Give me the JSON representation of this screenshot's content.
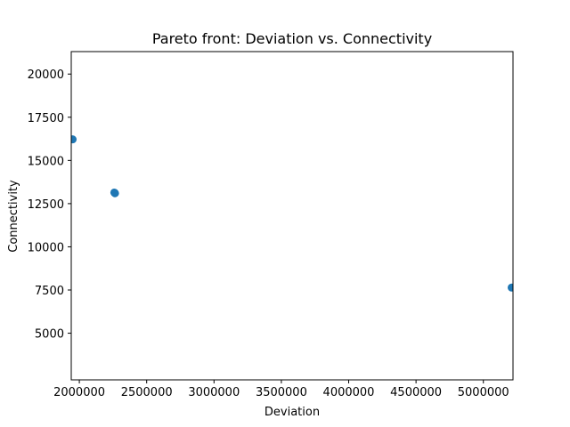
{
  "chart_data": {
    "type": "scatter",
    "title": "Pareto front: Deviation vs. Connectivity",
    "xlabel": "Deviation",
    "ylabel": "Connectivity",
    "xlim": [
      1940000,
      5220000
    ],
    "ylim": [
      2300,
      21300
    ],
    "xticks": [
      2000000,
      2500000,
      3000000,
      3500000,
      4000000,
      4500000,
      5000000
    ],
    "yticks": [
      5000,
      7500,
      10000,
      12500,
      15000,
      17500,
      20000
    ],
    "grid": false,
    "marker_color": "#1f77b4",
    "points": [
      {
        "x": 1950000,
        "y": 16220
      },
      {
        "x": 2260000,
        "y": 13140
      },
      {
        "x": 2265000,
        "y": 13100
      },
      {
        "x": 5210000,
        "y": 7640
      }
    ]
  }
}
